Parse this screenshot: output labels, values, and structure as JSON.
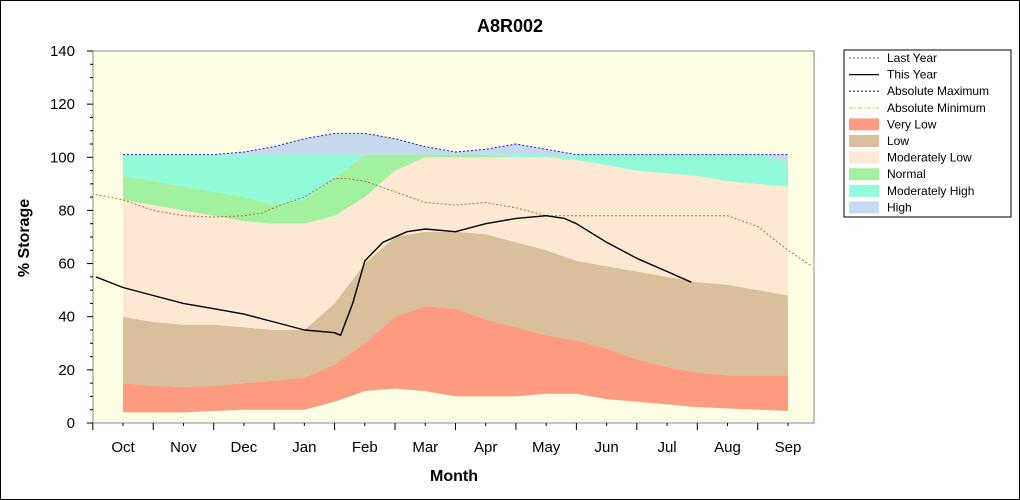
{
  "chart_data": {
    "type": "area",
    "title": "A8R002",
    "xlabel": "Month",
    "ylabel": "% Storage",
    "ylim": [
      0,
      140
    ],
    "yticks": [
      0,
      20,
      40,
      60,
      80,
      100,
      120,
      140
    ],
    "categories": [
      "Oct",
      "Nov",
      "Dec",
      "Jan",
      "Feb",
      "Mar",
      "Apr",
      "May",
      "Jun",
      "Jul",
      "Aug",
      "Sep"
    ],
    "legend_position": "right",
    "grid": false,
    "x_band_months": [
      0,
      0.5,
      1,
      1.5,
      2,
      2.5,
      3,
      3.5,
      4,
      4.5,
      5,
      5.5,
      6,
      6.5,
      7,
      7.5,
      8,
      8.5,
      9,
      9.5,
      10,
      10.5,
      11
    ],
    "bands": [
      {
        "name": "Very Low",
        "color": "#ff8a6e",
        "lower": [
          4,
          4,
          4,
          4.5,
          5,
          5,
          5,
          8,
          12,
          13,
          12,
          10,
          10,
          10,
          11,
          11,
          9,
          8,
          7,
          6,
          5.5,
          5,
          4.5
        ],
        "upper": [
          15,
          14,
          13.5,
          14,
          15,
          16,
          17,
          22,
          30,
          40,
          44,
          43,
          39,
          36,
          33,
          31,
          28,
          24,
          21,
          19,
          18,
          18,
          18
        ]
      },
      {
        "name": "Low",
        "color": "#d2b48c",
        "lower": [
          15,
          14,
          13.5,
          14,
          15,
          16,
          17,
          22,
          30,
          40,
          44,
          43,
          39,
          36,
          33,
          31,
          28,
          24,
          21,
          19,
          18,
          18,
          18
        ],
        "upper": [
          40,
          38,
          37,
          37,
          36,
          35,
          35,
          45,
          60,
          70,
          72,
          72,
          71,
          68,
          65,
          61,
          59,
          57,
          55,
          53,
          52,
          50,
          48
        ]
      },
      {
        "name": "Moderately Low",
        "color": "#fde5cf",
        "lower": [
          40,
          38,
          37,
          37,
          36,
          35,
          35,
          45,
          60,
          70,
          72,
          72,
          71,
          68,
          65,
          61,
          59,
          57,
          55,
          53,
          52,
          50,
          48
        ],
        "upper": [
          84,
          82,
          80,
          78,
          76,
          75,
          75,
          78,
          85,
          95,
          100,
          100,
          100,
          100,
          100,
          99,
          97,
          95,
          94,
          93,
          91,
          90,
          89
        ]
      },
      {
        "name": "Normal",
        "color": "#90ee90",
        "lower": [
          84,
          82,
          80,
          78,
          76,
          75,
          75,
          78,
          85,
          95,
          100,
          100,
          100,
          100,
          100,
          99,
          97,
          95,
          94,
          93,
          91,
          90,
          89
        ],
        "upper": [
          93,
          91,
          89,
          87,
          85,
          82,
          84,
          92,
          101,
          101,
          101,
          101,
          101,
          100,
          100,
          99,
          97,
          95,
          94,
          93,
          91,
          90,
          89
        ]
      },
      {
        "name": "Moderately High",
        "color": "#7ffad6",
        "lower": [
          93,
          91,
          89,
          87,
          85,
          82,
          84,
          92,
          101,
          101,
          101,
          101,
          101,
          100,
          100,
          99,
          97,
          95,
          94,
          93,
          91,
          90,
          89
        ],
        "upper": [
          101,
          101,
          101,
          101,
          101,
          101,
          101,
          101,
          101,
          101,
          101,
          101,
          101,
          101,
          101,
          101,
          101,
          101,
          101,
          101,
          101,
          101,
          98
        ]
      },
      {
        "name": "High",
        "color": "#bcd4ef",
        "lower": [
          101,
          101,
          101,
          101,
          101,
          101,
          101,
          101,
          101,
          101,
          101,
          101,
          101,
          101,
          101,
          101,
          101,
          101,
          101,
          101,
          101,
          101,
          98
        ],
        "upper": [
          101,
          101,
          101,
          101,
          102,
          104,
          107,
          109,
          109,
          107,
          104,
          102,
          103,
          105,
          103,
          101,
          101,
          101,
          101,
          101,
          101,
          101,
          101
        ]
      }
    ],
    "series": [
      {
        "name": "Last Year",
        "color": "#c0683c",
        "dash": "2,2",
        "x": [
          -0.45,
          0,
          0.5,
          1,
          1.5,
          2,
          2.3,
          2.6,
          3,
          3.5,
          3.7,
          4,
          4.5,
          5,
          5.5,
          6,
          6.5,
          7,
          7.5,
          8,
          8.5,
          9,
          9.5,
          10,
          10.5,
          11,
          11.4
        ],
        "values": [
          86,
          84,
          80,
          78,
          77.5,
          78,
          79,
          82,
          85,
          92,
          92,
          91,
          87,
          83,
          82,
          83,
          81,
          78,
          78,
          78,
          78,
          78,
          78,
          78,
          74,
          65,
          59
        ]
      },
      {
        "name": "This Year",
        "color": "#000000",
        "dash": "",
        "x": [
          -0.45,
          0,
          0.5,
          1,
          1.5,
          2,
          2.5,
          3,
          3.5,
          3.6,
          3.8,
          4,
          4.3,
          4.7,
          5,
          5.5,
          6,
          6.5,
          7,
          7.3,
          7.5,
          8,
          8.5,
          9,
          9.4
        ],
        "values": [
          55,
          51,
          48,
          45,
          43,
          41,
          38,
          35,
          34,
          33,
          45,
          61,
          68,
          72,
          73,
          72,
          75,
          77,
          78,
          77,
          75,
          68,
          62,
          57,
          53
        ]
      },
      {
        "name": "Absolute Maximum",
        "color": "#1a1acc",
        "dash": "2,2",
        "x": [
          0,
          0.5,
          1,
          1.5,
          2,
          2.5,
          3,
          3.5,
          4,
          4.5,
          5,
          5.5,
          6,
          6.5,
          7,
          7.5,
          8,
          8.5,
          9,
          9.5,
          10,
          10.5,
          11
        ],
        "values": [
          101,
          101,
          101,
          101,
          102,
          104,
          107,
          109,
          109,
          107,
          104,
          102,
          103,
          105,
          103,
          101,
          101,
          101,
          101,
          101,
          101,
          101,
          101
        ]
      },
      {
        "name": "Absolute Minimum",
        "color": "#e0e000",
        "dash": "4,2,1,2",
        "x": [
          0,
          1,
          2,
          3,
          4,
          5,
          6,
          7,
          8,
          9,
          10,
          11
        ],
        "values": [
          0,
          0,
          0,
          0,
          0,
          0,
          0,
          0,
          0,
          0,
          0,
          0
        ]
      }
    ],
    "legend": [
      {
        "label": "Last Year",
        "kind": "line",
        "color": "#c0683c",
        "dash": "2,2"
      },
      {
        "label": "This Year",
        "kind": "line",
        "color": "#000000",
        "dash": ""
      },
      {
        "label": "Absolute Maximum",
        "kind": "line",
        "color": "#1a1acc",
        "dash": "2,2"
      },
      {
        "label": "Absolute Minimum",
        "kind": "line",
        "color": "#e0e000",
        "dash": "4,2,1,2"
      },
      {
        "label": "Very Low",
        "kind": "band",
        "color": "#ff8a6e"
      },
      {
        "label": "Low",
        "kind": "band",
        "color": "#d2b48c"
      },
      {
        "label": "Moderately Low",
        "kind": "band",
        "color": "#fde5cf"
      },
      {
        "label": "Normal",
        "kind": "band",
        "color": "#90ee90"
      },
      {
        "label": "Moderately High",
        "kind": "band",
        "color": "#7ffad6"
      },
      {
        "label": "High",
        "kind": "band",
        "color": "#bcd4ef"
      }
    ],
    "plot_background": "#ffffe6"
  }
}
